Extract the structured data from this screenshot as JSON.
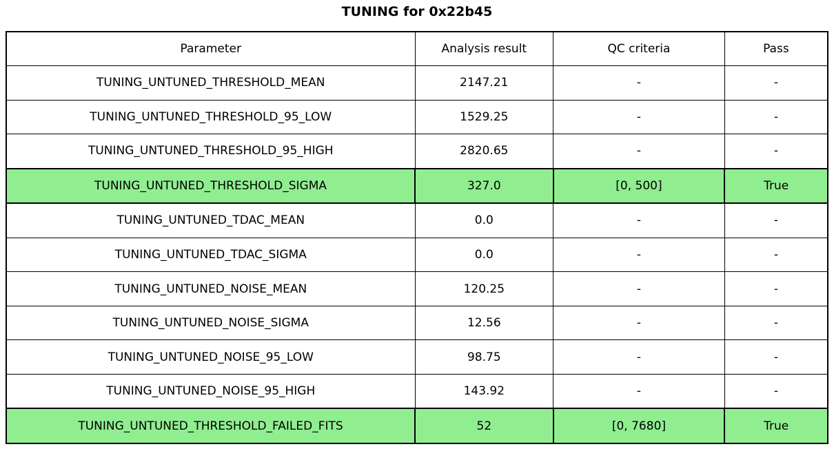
{
  "title": "TUNING for 0x22b45",
  "colors": {
    "pass_row_green": "#90ee90",
    "border": "#000000",
    "background": "#ffffff"
  },
  "chart_data": {
    "type": "table",
    "title": "TUNING for 0x22b45",
    "columns": [
      "Parameter",
      "Analysis result",
      "QC criteria",
      "Pass"
    ],
    "rows": [
      {
        "parameter": "TUNING_UNTUNED_THRESHOLD_MEAN",
        "analysis_result": "2147.21",
        "qc_criteria": "-",
        "pass": "-",
        "highlight": false
      },
      {
        "parameter": "TUNING_UNTUNED_THRESHOLD_95_LOW",
        "analysis_result": "1529.25",
        "qc_criteria": "-",
        "pass": "-",
        "highlight": false
      },
      {
        "parameter": "TUNING_UNTUNED_THRESHOLD_95_HIGH",
        "analysis_result": "2820.65",
        "qc_criteria": "-",
        "pass": "-",
        "highlight": false
      },
      {
        "parameter": "TUNING_UNTUNED_THRESHOLD_SIGMA",
        "analysis_result": "327.0",
        "qc_criteria": "[0, 500]",
        "pass": "True",
        "highlight": true
      },
      {
        "parameter": "TUNING_UNTUNED_TDAC_MEAN",
        "analysis_result": "0.0",
        "qc_criteria": "-",
        "pass": "-",
        "highlight": false
      },
      {
        "parameter": "TUNING_UNTUNED_TDAC_SIGMA",
        "analysis_result": "0.0",
        "qc_criteria": "-",
        "pass": "-",
        "highlight": false
      },
      {
        "parameter": "TUNING_UNTUNED_NOISE_MEAN",
        "analysis_result": "120.25",
        "qc_criteria": "-",
        "pass": "-",
        "highlight": false
      },
      {
        "parameter": "TUNING_UNTUNED_NOISE_SIGMA",
        "analysis_result": "12.56",
        "qc_criteria": "-",
        "pass": "-",
        "highlight": false
      },
      {
        "parameter": "TUNING_UNTUNED_NOISE_95_LOW",
        "analysis_result": "98.75",
        "qc_criteria": "-",
        "pass": "-",
        "highlight": false
      },
      {
        "parameter": "TUNING_UNTUNED_NOISE_95_HIGH",
        "analysis_result": "143.92",
        "qc_criteria": "-",
        "pass": "-",
        "highlight": false
      },
      {
        "parameter": "TUNING_UNTUNED_THRESHOLD_FAILED_FITS",
        "analysis_result": "52",
        "qc_criteria": "[0, 7680]",
        "pass": "True",
        "highlight": true
      }
    ]
  }
}
